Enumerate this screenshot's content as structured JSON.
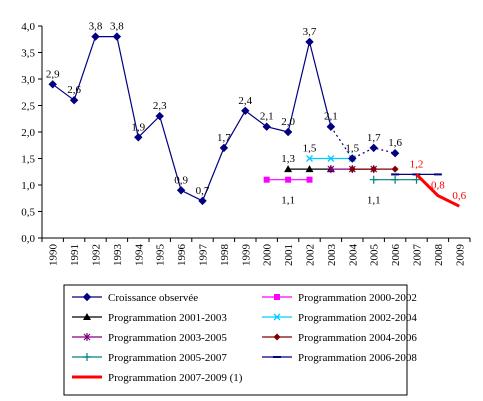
{
  "chart_data": {
    "type": "line",
    "title": "",
    "xlabel": "",
    "ylabel": "",
    "ylim": [
      0,
      4
    ],
    "yticks": [
      "0,0",
      "0,5",
      "1,0",
      "1,5",
      "2,0",
      "2,5",
      "3,0",
      "3,5",
      "4,0"
    ],
    "categories": [
      "1990",
      "1991",
      "1992",
      "1993",
      "1994",
      "1995",
      "1996",
      "1997",
      "1998",
      "1999",
      "2000",
      "2001",
      "2002",
      "2003",
      "2004",
      "2005",
      "2006",
      "2007",
      "2008",
      "2009"
    ],
    "grid": false,
    "legend_position": "bottom",
    "series": [
      {
        "name": "Croissance observée",
        "color": "#000080",
        "marker": "diamond",
        "x": [
          "1990",
          "1991",
          "1992",
          "1993",
          "1994",
          "1995",
          "1996",
          "1997",
          "1998",
          "1999",
          "2000",
          "2001",
          "2002",
          "2003"
        ],
        "values": [
          2.9,
          2.6,
          3.8,
          3.8,
          1.9,
          2.3,
          0.9,
          0.7,
          1.7,
          2.4,
          2.1,
          2.0,
          3.7,
          2.1
        ]
      },
      {
        "name": "Programmation 2000-2002",
        "color": "#ff00ff",
        "marker": "square",
        "x": [
          "2000",
          "2001",
          "2002"
        ],
        "values": [
          1.1,
          1.1,
          1.1
        ]
      },
      {
        "name": "Programmation 2001-2003",
        "color": "#000000",
        "marker": "triangle",
        "x": [
          "2001",
          "2002",
          "2003"
        ],
        "values": [
          1.3,
          1.3,
          1.3
        ]
      },
      {
        "name": "Programmation 2002-2004",
        "color": "#00ccff",
        "marker": "x",
        "x": [
          "2002",
          "2003",
          "2004"
        ],
        "values": [
          1.5,
          1.5,
          1.5
        ]
      },
      {
        "name": "Programmation 2003-2005",
        "color": "#800080",
        "marker": "star",
        "x": [
          "2003",
          "2004",
          "2005"
        ],
        "values": [
          1.3,
          1.3,
          1.3
        ]
      },
      {
        "name": "Programmation 2004-2006",
        "color": "#800000",
        "marker": "circle",
        "x": [
          "2004",
          "2005",
          "2006"
        ],
        "values": [
          1.3,
          1.3,
          1.3
        ]
      },
      {
        "name": "Programmation 2005-2007",
        "color": "#008080",
        "marker": "plus",
        "x": [
          "2005",
          "2006",
          "2007"
        ],
        "values": [
          1.1,
          1.1,
          1.1
        ]
      },
      {
        "name": "Programmation 2006-2008",
        "color": "#000080",
        "marker": "dash",
        "x": [
          "2006",
          "2007",
          "2008"
        ],
        "values": [
          1.2,
          1.2,
          1.2
        ]
      },
      {
        "name": "Programmation 2007-2009 (1)",
        "color": "#ff0000",
        "marker": "none",
        "thick": true,
        "x": [
          "2007",
          "2008",
          "2009"
        ],
        "values": [
          1.2,
          0.8,
          0.6
        ]
      },
      {
        "name": "",
        "color": "#000080",
        "marker": "diamond",
        "dotted": true,
        "x": [
          "2003",
          "2004",
          "2005",
          "2006"
        ],
        "values": [
          2.1,
          1.5,
          1.7,
          1.6
        ]
      }
    ],
    "data_labels": [
      {
        "x": "1990",
        "y": 2.9,
        "text": "2,9",
        "color": "#000000"
      },
      {
        "x": "1991",
        "y": 2.6,
        "text": "2,6",
        "color": "#000000"
      },
      {
        "x": "1992",
        "y": 3.8,
        "text": "3,8",
        "color": "#000000"
      },
      {
        "x": "1993",
        "y": 3.8,
        "text": "3,8",
        "color": "#000000"
      },
      {
        "x": "1994",
        "y": 1.9,
        "text": "1,9",
        "color": "#000000"
      },
      {
        "x": "1995",
        "y": 2.3,
        "text": "2,3",
        "color": "#000000"
      },
      {
        "x": "1996",
        "y": 0.9,
        "text": "0,9",
        "color": "#000000"
      },
      {
        "x": "1997",
        "y": 0.7,
        "text": "0,7",
        "color": "#000000"
      },
      {
        "x": "1998",
        "y": 1.7,
        "text": "1,7",
        "color": "#000000"
      },
      {
        "x": "1999",
        "y": 2.4,
        "text": "2,4",
        "color": "#000000"
      },
      {
        "x": "2000",
        "y": 2.1,
        "text": "2,1",
        "color": "#000000"
      },
      {
        "x": "2001",
        "y": 2.0,
        "text": "2,0",
        "color": "#000000"
      },
      {
        "x": "2002",
        "y": 3.7,
        "text": "3,7",
        "color": "#000000"
      },
      {
        "x": "2003",
        "y": 2.1,
        "text": "2,1",
        "color": "#000000"
      },
      {
        "x": "2004",
        "y": 1.5,
        "text": "1,5",
        "color": "#000000"
      },
      {
        "x": "2005",
        "y": 1.7,
        "text": "1,7",
        "color": "#000000"
      },
      {
        "x": "2006",
        "y": 1.6,
        "text": "1,6",
        "color": "#000000"
      },
      {
        "x": "2001",
        "y": 1.3,
        "text": "1,3",
        "color": "#000000"
      },
      {
        "x": "2002",
        "y": 1.5,
        "text": "1,5",
        "color": "#000000"
      },
      {
        "x": "2001",
        "y": 1.1,
        "text": "1,1",
        "color": "#000000",
        "below": true
      },
      {
        "x": "2005",
        "y": 1.1,
        "text": "1,1",
        "color": "#000000",
        "below": true
      },
      {
        "x": "2007",
        "y": 1.2,
        "text": "1,2",
        "color": "#ff0000"
      },
      {
        "x": "2008",
        "y": 0.8,
        "text": "0,8",
        "color": "#ff0000"
      },
      {
        "x": "2009",
        "y": 0.6,
        "text": "0,6",
        "color": "#ff0000"
      }
    ]
  }
}
